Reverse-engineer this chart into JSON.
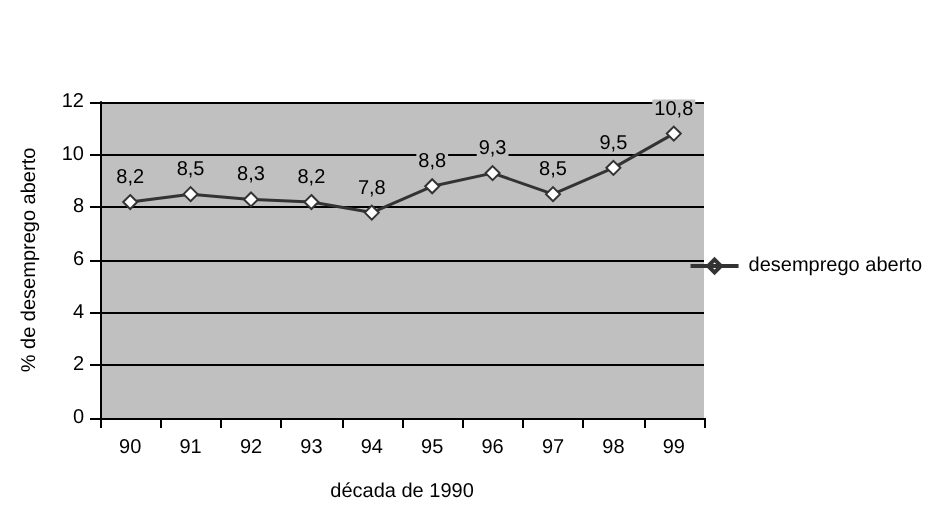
{
  "chart_data": {
    "type": "line",
    "xlabel": "década de 1990",
    "ylabel": "% de desemprego aberto",
    "categories": [
      "90",
      "91",
      "92",
      "93",
      "94",
      "95",
      "96",
      "97",
      "98",
      "99"
    ],
    "series": [
      {
        "name": "desemprego aberto",
        "color": "#333333",
        "values": [
          8.2,
          8.5,
          8.3,
          8.2,
          7.8,
          8.8,
          9.3,
          8.5,
          9.5,
          10.8
        ],
        "value_labels": [
          "8,2",
          "8,5",
          "8,3",
          "8,2",
          "7,8",
          "8,8",
          "9,3",
          "8,5",
          "9,5",
          "10,8"
        ]
      }
    ],
    "ylim": [
      0,
      12
    ],
    "yticks": [
      0,
      2,
      4,
      6,
      8,
      10,
      12
    ],
    "grid": "y",
    "legend": "right",
    "marker": "diamond",
    "line_style": "solid"
  }
}
